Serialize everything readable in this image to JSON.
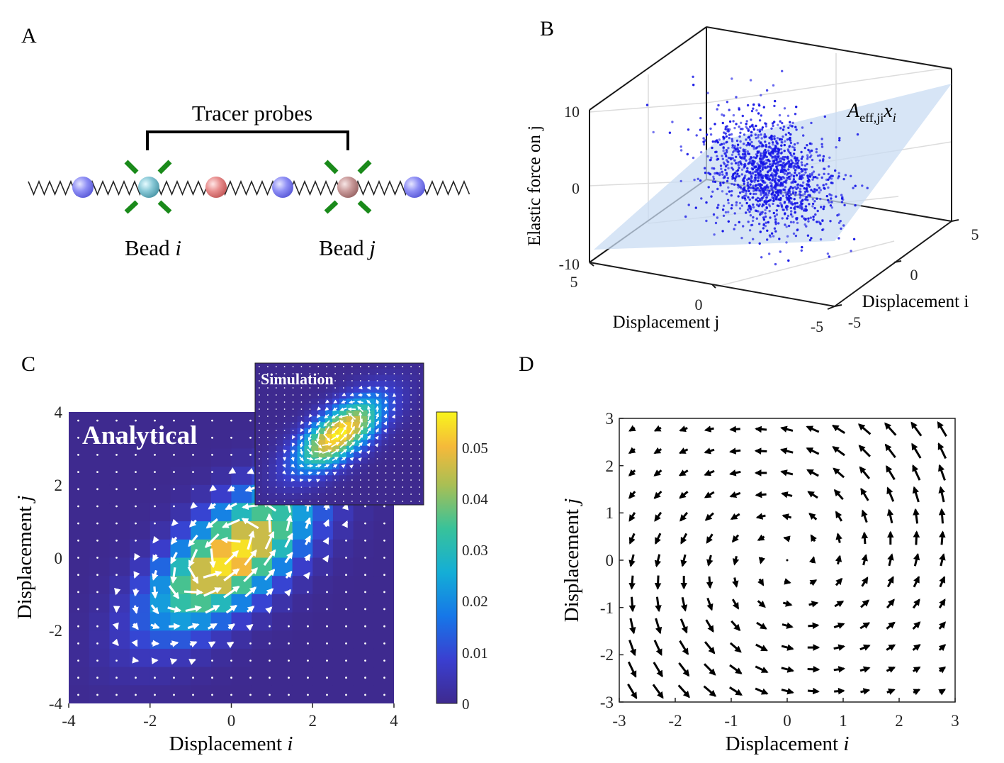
{
  "panelA": {
    "label": "A",
    "bracket_label": "Tracer probes",
    "bead_i": {
      "text": "Bead ",
      "var": "i"
    },
    "bead_j": {
      "text": "Bead ",
      "var": "j"
    },
    "bead_colors": [
      "#8f8ff5",
      "#88c8d6",
      "#e88e8e",
      "#8f8ff5",
      "#c99a9a",
      "#8f8ff5"
    ],
    "probe_color": "#1a8a1a"
  },
  "panelB": {
    "label": "B",
    "z_axis_label": "Elastic force on j",
    "x_axis_label": "Displacement  j",
    "y_axis_label": "Displacement  i",
    "z_ticks": [
      "10",
      "0",
      "-10"
    ],
    "x_ticks": [
      "5",
      "0",
      "-5"
    ],
    "y_ticks": [
      "5",
      "0",
      "-5"
    ],
    "plane_label": {
      "A": "A",
      "sub": "eff,ji",
      "x": "x",
      "xsub": "i"
    },
    "point_color": "#1515e6",
    "plane_color": "#c9dcf3"
  },
  "panelC": {
    "label": "C",
    "title_main": "Analytical",
    "title_inset": "Simulation",
    "x_axis_label": {
      "text": "Displacement ",
      "var": "i"
    },
    "y_axis_label": {
      "text": "Displacement ",
      "var": "j"
    },
    "x_ticks": [
      "-4",
      "-2",
      "0",
      "2",
      "4"
    ],
    "y_ticks": [
      "4",
      "2",
      "0",
      "-2",
      "-4"
    ],
    "colorbar_ticks": [
      "0.05",
      "0.04",
      "0.03",
      "0.02",
      "0.01",
      "0"
    ],
    "colorbar_range": [
      0,
      0.057
    ]
  },
  "panelD": {
    "label": "D",
    "x_axis_label": {
      "text": "Displacement ",
      "var": "i"
    },
    "y_axis_label": {
      "text": "Displacement ",
      "var": "j"
    },
    "x_ticks": [
      "-3",
      "-2",
      "-1",
      "0",
      "1",
      "2",
      "3"
    ],
    "y_ticks": [
      "3",
      "2",
      "1",
      "0",
      "-1",
      "-2",
      "-3"
    ]
  }
}
